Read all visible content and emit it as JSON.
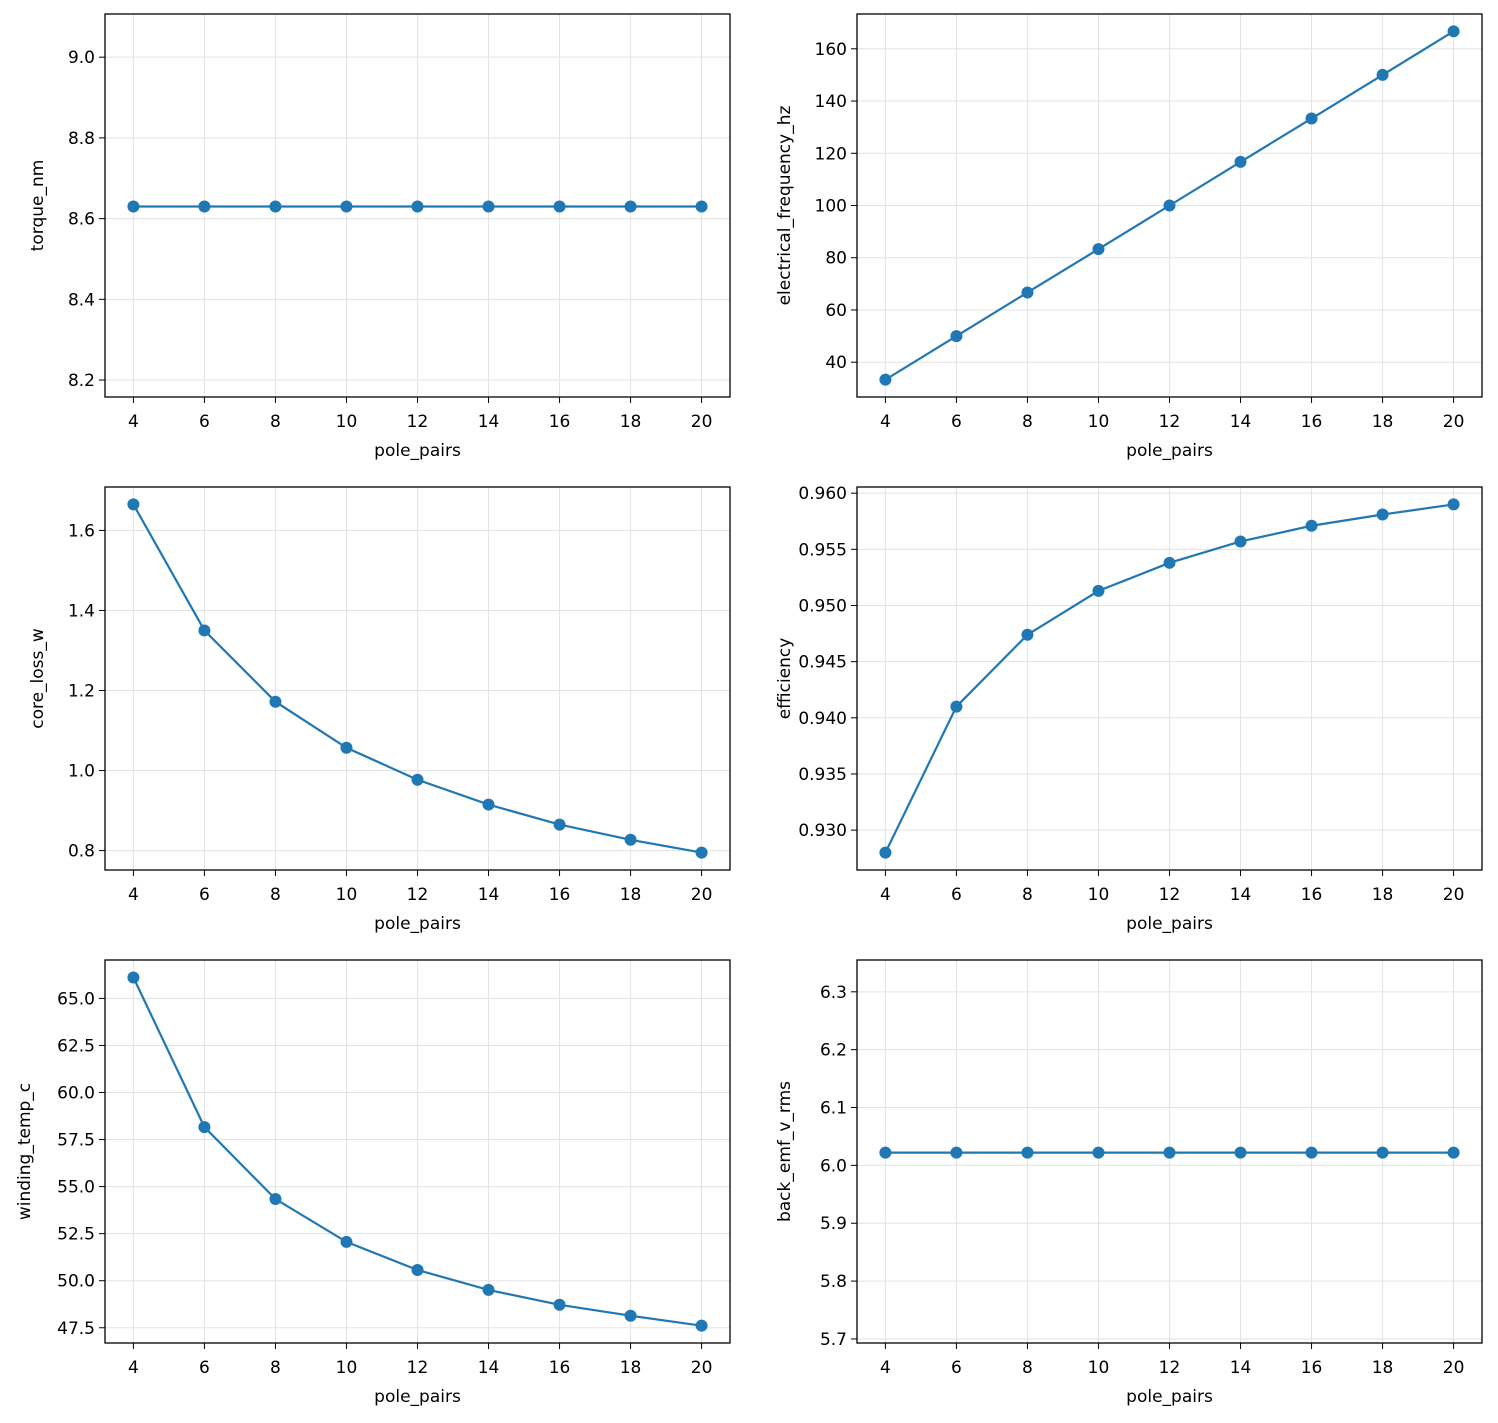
{
  "chart_data": [
    {
      "type": "line",
      "x_label": "pole_pairs",
      "y_label": "torque_nm",
      "color": "#1f77b4",
      "grid": true,
      "x": [
        4,
        6,
        8,
        10,
        12,
        14,
        16,
        18,
        20
      ],
      "values": [
        8.63,
        8.63,
        8.63,
        8.63,
        8.63,
        8.63,
        8.63,
        8.63,
        8.63
      ],
      "xlim": [
        3.2,
        20.8
      ],
      "xticks": [
        4,
        6,
        8,
        10,
        12,
        14,
        16,
        18,
        20
      ],
      "ylim": [
        8.158,
        9.107
      ],
      "yticks": [
        8.2,
        8.4,
        8.6,
        8.8,
        {
          "value": 9.0,
          "label": "9.0"
        }
      ]
    },
    {
      "type": "line",
      "x_label": "pole_pairs",
      "y_label": "electrical_frequency_hz",
      "color": "#1f77b4",
      "grid": true,
      "x": [
        4,
        6,
        8,
        10,
        12,
        14,
        16,
        18,
        20
      ],
      "values": [
        33.3,
        50,
        66.7,
        83.3,
        100,
        116.7,
        133.3,
        150,
        166.7
      ],
      "xlim": [
        3.2,
        20.8
      ],
      "xticks": [
        4,
        6,
        8,
        10,
        12,
        14,
        16,
        18,
        20
      ],
      "ylim": [
        26.67,
        173.33
      ],
      "yticks": [
        40,
        60,
        80,
        100,
        120,
        140,
        160
      ]
    },
    {
      "type": "line",
      "x_label": "pole_pairs",
      "y_label": "core_loss_w",
      "color": "#1f77b4",
      "grid": true,
      "x": [
        4,
        6,
        8,
        10,
        12,
        14,
        16,
        18,
        20
      ],
      "values": [
        1.665,
        1.35,
        1.172,
        1.057,
        0.977,
        0.915,
        0.865,
        0.827,
        0.795
      ],
      "xlim": [
        3.2,
        20.8
      ],
      "xticks": [
        4,
        6,
        8,
        10,
        12,
        14,
        16,
        18,
        20
      ],
      "ylim": [
        0.7515,
        1.7085
      ],
      "yticks": [
        0.8,
        {
          "value": 1.0,
          "label": "1.0"
        },
        1.2,
        1.4,
        1.6
      ]
    },
    {
      "type": "line",
      "x_label": "pole_pairs",
      "y_label": "efficiency",
      "color": "#1f77b4",
      "grid": true,
      "x": [
        4,
        6,
        8,
        10,
        12,
        14,
        16,
        18,
        20
      ],
      "values": [
        0.928,
        0.941,
        0.9474,
        0.9513,
        0.9538,
        0.9557,
        0.9571,
        0.9581,
        0.959
      ],
      "xlim": [
        3.2,
        20.8
      ],
      "xticks": [
        4,
        6,
        8,
        10,
        12,
        14,
        16,
        18,
        20
      ],
      "ylim": [
        0.92645,
        0.96055
      ],
      "yticks": [
        {
          "value": 0.93,
          "label": "0.930"
        },
        0.935,
        {
          "value": 0.94,
          "label": "0.940"
        },
        0.945,
        {
          "value": 0.95,
          "label": "0.950"
        },
        0.955,
        {
          "value": 0.96,
          "label": "0.960"
        }
      ]
    },
    {
      "type": "line",
      "x_label": "pole_pairs",
      "y_label": "winding_temp_c",
      "color": "#1f77b4",
      "grid": true,
      "x": [
        4,
        6,
        8,
        10,
        12,
        14,
        16,
        18,
        20
      ],
      "values": [
        66.11,
        58.16,
        54.34,
        52.06,
        50.57,
        49.51,
        48.72,
        48.14,
        47.61
      ],
      "xlim": [
        3.2,
        20.8
      ],
      "xticks": [
        4,
        6,
        8,
        10,
        12,
        14,
        16,
        18,
        20
      ],
      "ylim": [
        46.69,
        67.04
      ],
      "yticks": [
        47.5,
        {
          "value": 50,
          "label": "50.0"
        },
        52.5,
        {
          "value": 55,
          "label": "55.0"
        },
        57.5,
        {
          "value": 60,
          "label": "60.0"
        },
        62.5,
        {
          "value": 65,
          "label": "65.0"
        }
      ]
    },
    {
      "type": "line",
      "x_label": "pole_pairs",
      "y_label": "back_emf_v_rms",
      "color": "#1f77b4",
      "grid": true,
      "x": [
        4,
        6,
        8,
        10,
        12,
        14,
        16,
        18,
        20
      ],
      "values": [
        6.022,
        6.022,
        6.022,
        6.022,
        6.022,
        6.022,
        6.022,
        6.022,
        6.022
      ],
      "xlim": [
        3.2,
        20.8
      ],
      "xticks": [
        4,
        6,
        8,
        10,
        12,
        14,
        16,
        18,
        20
      ],
      "ylim": [
        5.693,
        6.355
      ],
      "yticks": [
        5.7,
        5.8,
        5.9,
        {
          "value": 6.0,
          "label": "6.0"
        },
        6.1,
        6.2,
        6.3
      ]
    }
  ]
}
